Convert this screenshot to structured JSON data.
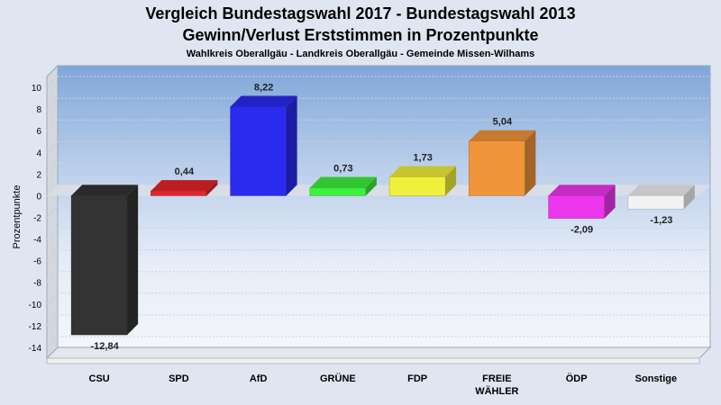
{
  "header": {
    "title_line1": "Vergleich Bundestagswahl 2017 - Bundestagswahl 2013",
    "title_line2": "Gewinn/Verlust Erststimmen in Prozentpunkte",
    "subtitle": "Wahlkreis Oberallgäu - Landkreis Oberallgäu - Gemeinde Missen-Wilhams"
  },
  "chart_data": {
    "type": "bar",
    "title": "Vergleich Bundestagswahl 2017 - Bundestagswahl 2013",
    "subtitle": "Gewinn/Verlust Erststimmen in Prozentpunkte",
    "ylabel": "Prozentpunkte",
    "ylim": [
      -15,
      11
    ],
    "yticks": [
      10,
      8,
      6,
      4,
      2,
      0,
      -2,
      -4,
      -6,
      -8,
      -10,
      -12,
      -14
    ],
    "grid": true,
    "categories": [
      [
        "CSU"
      ],
      [
        "SPD"
      ],
      [
        "AfD"
      ],
      [
        "GRÜNE"
      ],
      [
        "FDP"
      ],
      [
        "FREIE",
        "WÄHLER"
      ],
      [
        "ÖDP"
      ],
      [
        "Sonstige"
      ]
    ],
    "values": [
      -12.84,
      0.44,
      8.22,
      0.73,
      1.73,
      5.04,
      -2.09,
      -1.23
    ],
    "value_labels": [
      "-12,84",
      "0,44",
      "8,22",
      "0,73",
      "1,73",
      "5,04",
      "-2,09",
      "-1,23"
    ],
    "colors": [
      "#333333",
      "#e3242b",
      "#2b2bf0",
      "#3df03d",
      "#f0f03a",
      "#f0953a",
      "#ee35ee",
      "#f2f2f2"
    ]
  }
}
